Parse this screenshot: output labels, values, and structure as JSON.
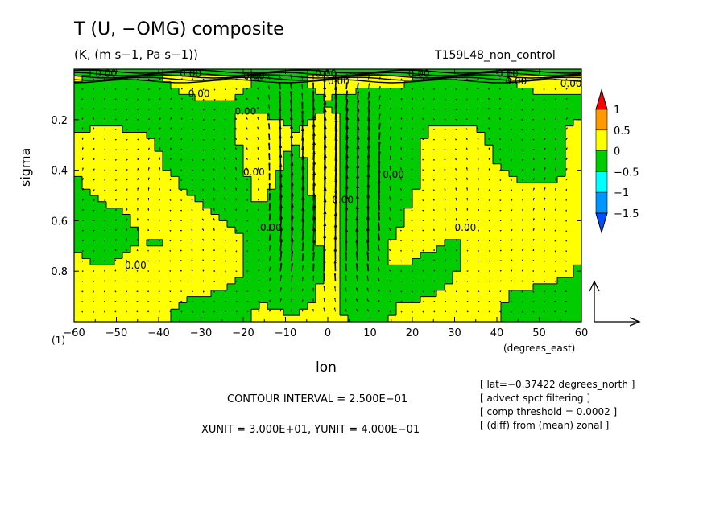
{
  "header": {
    "title": "T (U, −OMG) composite",
    "units": "(K, (m s−1, Pa s−1))",
    "experiment": "T159L48_non_control"
  },
  "footer": {
    "contour_interval": "CONTOUR INTERVAL = 2.500E−01",
    "units_line": "XUNIT = 3.000E+01, YUNIT = 4.000E−01",
    "notes": [
      "[ lat=−0.37422 degrees_north ]",
      "[ advect spct filtering ]",
      "[ comp threshold = 0.0002 ]",
      "[ (diff) from (mean) zonal ]"
    ],
    "panel_index": "(1)"
  },
  "chart_data": {
    "type": "heatmap",
    "title": "T (U, −OMG) composite",
    "xlabel": "lon",
    "xunits": "(degrees_east)",
    "ylabel": "sigma",
    "xlim": [
      -60,
      60
    ],
    "ylim": [
      1.0,
      0.0
    ],
    "xticks": [
      -60,
      -50,
      -40,
      -30,
      -20,
      -10,
      0,
      10,
      20,
      30,
      40,
      50,
      60
    ],
    "yticks": [
      0.2,
      0.4,
      0.6,
      0.8
    ],
    "xtick_labels": [
      "−60",
      "−50",
      "−40",
      "−30",
      "−20",
      "−10",
      "0",
      "10",
      "20",
      "30",
      "40",
      "50",
      "60"
    ],
    "ytick_labels": [
      "0.2",
      "0.4",
      "0.6",
      "0.8"
    ],
    "contour_label": "0.00",
    "contour_interval": 0.25,
    "colorbar": {
      "levels": [
        -1.5,
        -1,
        -0.5,
        0,
        0.5,
        1
      ],
      "labels": [
        "1",
        "0.5",
        "0",
        "−0.5",
        "−1",
        "−1.5"
      ],
      "colors": [
        "#ff0000",
        "#ff9a00",
        "#ffff00",
        "#00cc00",
        "#00ffff",
        "#0096ff",
        "#0050ff"
      ]
    },
    "fill_colors": {
      "positive": "#ffff00",
      "negative": "#00cc00"
    },
    "vectors": {
      "xunit": 30,
      "yunit": 0.4,
      "max_upward_lon": 0,
      "note": ""
    }
  }
}
